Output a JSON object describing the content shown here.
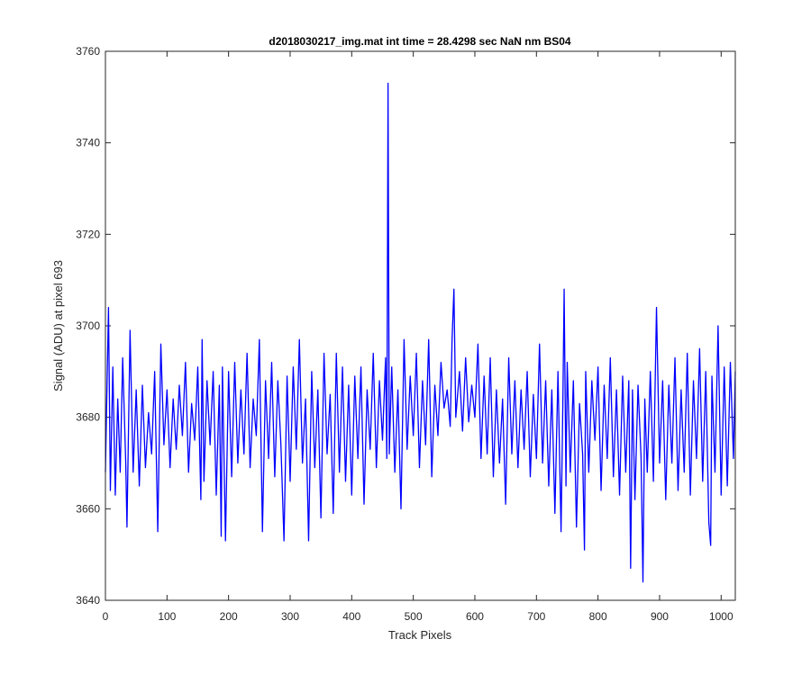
{
  "chart_data": {
    "type": "line",
    "title": "d2018030217_img.mat int time = 28.4298 sec  NaN nm BS04",
    "xlabel": "Track Pixels",
    "ylabel": "Signal (ADU) at pixel 693",
    "xlim": [
      0,
      1023
    ],
    "xticks": [
      0,
      100,
      200,
      300,
      400,
      500,
      600,
      700,
      800,
      900,
      1000
    ],
    "ylim": [
      3640,
      3760
    ],
    "yticks": [
      3640,
      3660,
      3680,
      3700,
      3720,
      3740,
      3760
    ],
    "grid": false,
    "x": [
      0,
      3,
      5,
      8,
      12,
      16,
      20,
      24,
      28,
      33,
      35,
      40,
      45,
      50,
      55,
      60,
      65,
      70,
      75,
      80,
      85,
      90,
      95,
      100,
      105,
      110,
      115,
      120,
      125,
      130,
      135,
      140,
      145,
      150,
      155,
      157,
      160,
      165,
      170,
      175,
      180,
      185,
      188,
      190,
      195,
      200,
      205,
      210,
      215,
      220,
      225,
      230,
      235,
      240,
      245,
      250,
      255,
      260,
      265,
      270,
      275,
      280,
      285,
      290,
      295,
      300,
      305,
      310,
      315,
      320,
      325,
      330,
      335,
      340,
      345,
      350,
      355,
      360,
      365,
      370,
      375,
      380,
      385,
      390,
      395,
      400,
      405,
      410,
      415,
      420,
      425,
      430,
      435,
      440,
      445,
      450,
      455,
      457,
      459,
      461,
      465,
      470,
      475,
      480,
      485,
      490,
      495,
      500,
      505,
      510,
      515,
      520,
      525,
      530,
      535,
      540,
      545,
      550,
      555,
      560,
      563,
      566,
      569,
      575,
      580,
      585,
      590,
      595,
      600,
      605,
      610,
      615,
      620,
      625,
      630,
      635,
      640,
      645,
      650,
      655,
      660,
      665,
      670,
      675,
      680,
      685,
      690,
      695,
      700,
      705,
      710,
      715,
      720,
      725,
      730,
      735,
      740,
      743,
      745,
      748,
      750,
      755,
      760,
      765,
      770,
      775,
      778,
      780,
      785,
      790,
      795,
      800,
      805,
      810,
      815,
      820,
      825,
      830,
      835,
      840,
      845,
      850,
      853,
      856,
      860,
      865,
      870,
      873,
      876,
      880,
      885,
      890,
      895,
      900,
      905,
      910,
      915,
      920,
      925,
      930,
      935,
      940,
      945,
      950,
      955,
      960,
      965,
      970,
      975,
      980,
      983,
      985,
      990,
      995,
      1000,
      1005,
      1010,
      1015,
      1020,
      1023
    ],
    "series": [
      {
        "color": "#0000ff",
        "values": [
          3668,
          3690,
          3704,
          3664,
          3691,
          3663,
          3684,
          3668,
          3693,
          3670,
          3656,
          3699,
          3668,
          3686,
          3665,
          3687,
          3669,
          3681,
          3672,
          3690,
          3655,
          3696,
          3674,
          3686,
          3669,
          3684,
          3673,
          3687,
          3676,
          3692,
          3668,
          3683,
          3675,
          3691,
          3662,
          3697,
          3666,
          3688,
          3674,
          3690,
          3663,
          3687,
          3654,
          3691,
          3653,
          3690,
          3667,
          3692,
          3670,
          3686,
          3672,
          3694,
          3669,
          3684,
          3676,
          3697,
          3655,
          3688,
          3671,
          3692,
          3667,
          3688,
          3674,
          3653,
          3689,
          3666,
          3691,
          3673,
          3697,
          3670,
          3684,
          3653,
          3690,
          3669,
          3686,
          3658,
          3694,
          3672,
          3685,
          3659,
          3694,
          3668,
          3691,
          3666,
          3687,
          3663,
          3689,
          3671,
          3691,
          3661,
          3686,
          3673,
          3694,
          3669,
          3688,
          3675,
          3693,
          3671,
          3753,
          3672,
          3691,
          3668,
          3686,
          3660,
          3697,
          3673,
          3689,
          3676,
          3694,
          3669,
          3688,
          3674,
          3697,
          3667,
          3687,
          3676,
          3692,
          3682,
          3686,
          3678,
          3697,
          3708,
          3680,
          3690,
          3677,
          3693,
          3679,
          3687,
          3680,
          3696,
          3671,
          3689,
          3672,
          3693,
          3667,
          3686,
          3670,
          3684,
          3661,
          3693,
          3672,
          3688,
          3669,
          3686,
          3673,
          3690,
          3667,
          3685,
          3671,
          3696,
          3670,
          3688,
          3665,
          3686,
          3659,
          3690,
          3655,
          3684,
          3708,
          3665,
          3692,
          3668,
          3688,
          3656,
          3683,
          3672,
          3651,
          3690,
          3668,
          3688,
          3675,
          3691,
          3664,
          3687,
          3671,
          3693,
          3667,
          3686,
          3663,
          3689,
          3668,
          3688,
          3647,
          3686,
          3662,
          3687,
          3671,
          3644,
          3684,
          3668,
          3690,
          3666,
          3704,
          3670,
          3688,
          3662,
          3687,
          3670,
          3693,
          3664,
          3686,
          3668,
          3694,
          3663,
          3688,
          3671,
          3695,
          3666,
          3690,
          3657,
          3652,
          3689,
          3668,
          3700,
          3663,
          3691,
          3665,
          3692,
          3671,
          3690
        ]
      }
    ]
  }
}
